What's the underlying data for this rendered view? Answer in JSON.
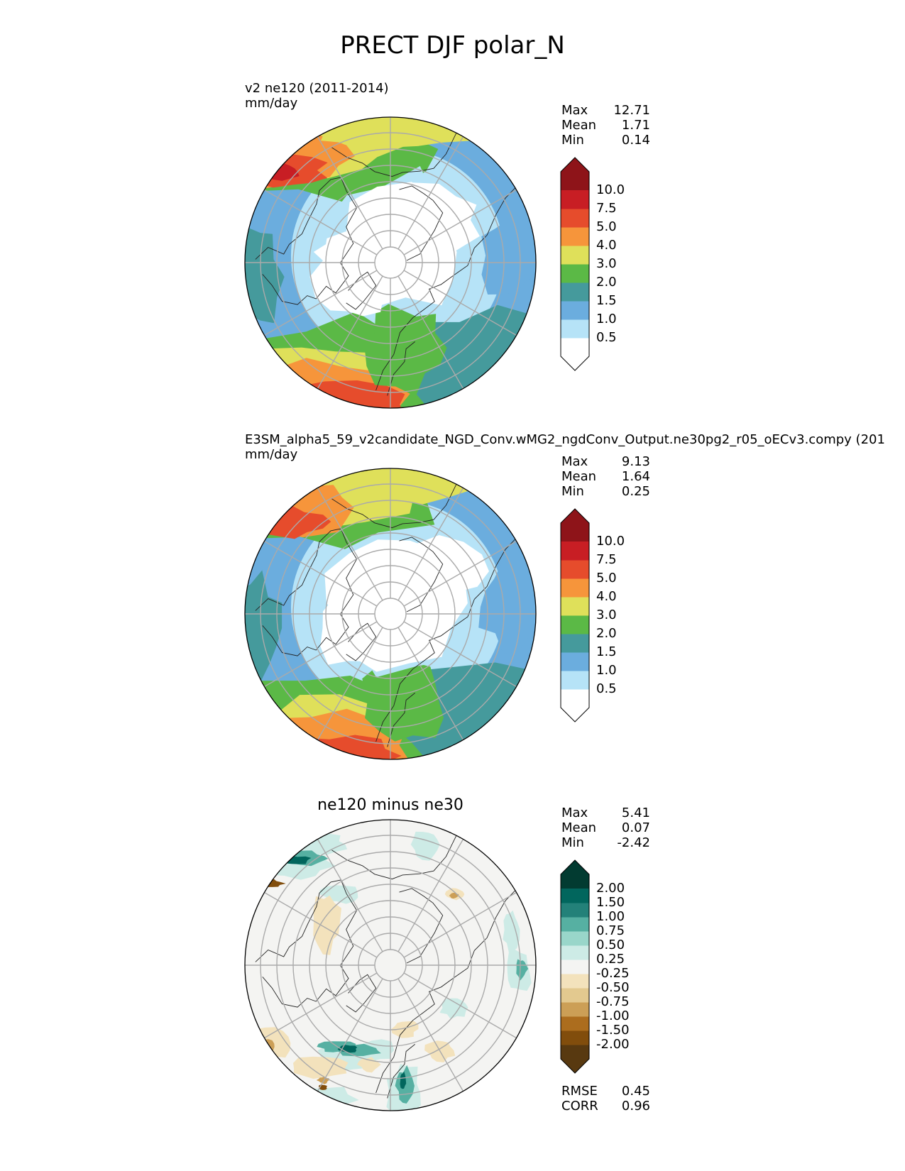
{
  "figure": {
    "title": "PRECT DJF polar_N"
  },
  "chart_data": [
    {
      "type": "heatmap",
      "projection": "north-polar-stereographic",
      "title_line1": "v2 ne120 (2011-2014)",
      "units": "mm/day",
      "stats": [
        {
          "label": "Max",
          "value": "12.71"
        },
        {
          "label": "Mean",
          "value": "1.71"
        },
        {
          "label": "Min",
          "value": "0.14"
        }
      ],
      "colorbar": {
        "ticks": [
          "10.0",
          "7.5",
          "5.0",
          "4.0",
          "3.0",
          "2.0",
          "1.5",
          "1.0",
          "0.5"
        ],
        "colors": [
          "#ffffff",
          "#b6e3f7",
          "#6badde",
          "#459a9c",
          "#5bb946",
          "#dfe05a",
          "#f6953b",
          "#e64c2c",
          "#c81e24",
          "#8e1419"
        ]
      }
    },
    {
      "type": "heatmap",
      "projection": "north-polar-stereographic",
      "title_line1": "E3SM_alpha5_59_v2candidate_NGD_Conv.wMG2_ngdConv_Output.ne30pg2_r05_oECv3.compy (201",
      "units": "mm/day",
      "stats": [
        {
          "label": "Max",
          "value": "9.13"
        },
        {
          "label": "Mean",
          "value": "1.64"
        },
        {
          "label": "Min",
          "value": "0.25"
        }
      ],
      "colorbar": {
        "ticks": [
          "10.0",
          "7.5",
          "5.0",
          "4.0",
          "3.0",
          "2.0",
          "1.5",
          "1.0",
          "0.5"
        ],
        "colors": [
          "#ffffff",
          "#b6e3f7",
          "#6badde",
          "#459a9c",
          "#5bb946",
          "#dfe05a",
          "#f6953b",
          "#e64c2c",
          "#c81e24",
          "#8e1419"
        ]
      }
    },
    {
      "type": "heatmap",
      "projection": "north-polar-stereographic",
      "title": "ne120 minus ne30",
      "stats": [
        {
          "label": "Max",
          "value": "5.41"
        },
        {
          "label": "Mean",
          "value": "0.07"
        },
        {
          "label": "Min",
          "value": "-2.42"
        }
      ],
      "colorbar": {
        "ticks": [
          "2.00",
          "1.50",
          "1.00",
          "0.75",
          "0.50",
          "0.25",
          "-0.25",
          "-0.50",
          "-0.75",
          "-1.00",
          "-1.50",
          "-2.00"
        ],
        "colors": [
          "#583910",
          "#814d0c",
          "#ac6d1e",
          "#cc9f56",
          "#e3c98f",
          "#f3e2bc",
          "#f4f4f2",
          "#cdebe6",
          "#99d6ca",
          "#56b0a2",
          "#238179",
          "#01665d",
          "#023b31"
        ]
      },
      "metrics": [
        {
          "label": "RMSE",
          "value": "0.45"
        },
        {
          "label": "CORR",
          "value": "0.96"
        }
      ]
    }
  ]
}
